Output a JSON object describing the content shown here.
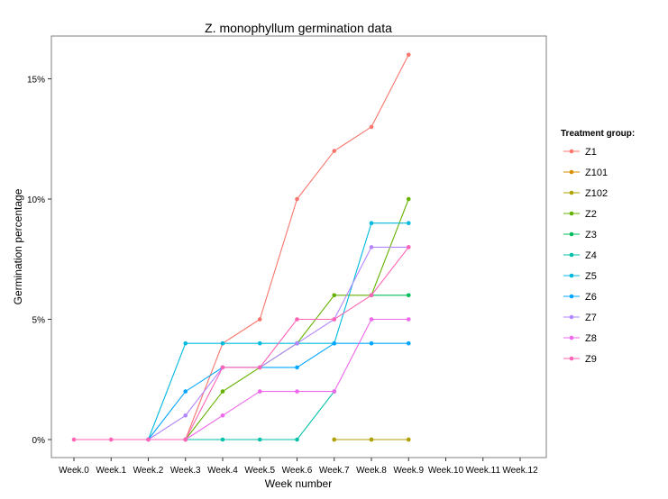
{
  "chart_data": {
    "type": "line",
    "title": "Z. monophyllum germination data",
    "xlabel": "Week number",
    "ylabel": "Germination percentage",
    "categories": [
      "Week.0",
      "Week.1",
      "Week.2",
      "Week.3",
      "Week.4",
      "Week.5",
      "Week.6",
      "Week.7",
      "Week.8",
      "Week.9",
      "Week.10",
      "Week.11",
      "Week.12"
    ],
    "yticks": [
      0,
      5,
      10,
      15
    ],
    "ytick_labels": [
      "0%",
      "5%",
      "10%",
      "15%"
    ],
    "ylim": [
      -0.8,
      16.9
    ],
    "grid": false,
    "legend_title": "Treatment group:",
    "legend_position": "right",
    "series": [
      {
        "name": "Z1",
        "color": "#F8766D",
        "values": [
          null,
          null,
          null,
          0,
          4,
          5,
          10,
          12,
          13,
          16,
          null,
          null,
          null
        ]
      },
      {
        "name": "Z101",
        "color": "#DB8E00",
        "values": [
          null,
          null,
          null,
          null,
          null,
          null,
          null,
          0,
          0,
          0,
          null,
          null,
          null
        ]
      },
      {
        "name": "Z102",
        "color": "#AEA200",
        "values": [
          null,
          null,
          null,
          null,
          null,
          null,
          null,
          0,
          0,
          0,
          null,
          null,
          null
        ]
      },
      {
        "name": "Z2",
        "color": "#64B200",
        "values": [
          null,
          null,
          null,
          0,
          2,
          3,
          4,
          6,
          6,
          10,
          null,
          null,
          null
        ]
      },
      {
        "name": "Z3",
        "color": "#00BD5C",
        "values": [
          null,
          null,
          null,
          null,
          null,
          null,
          null,
          null,
          6,
          6,
          null,
          null,
          null
        ]
      },
      {
        "name": "Z4",
        "color": "#00C1A7",
        "values": [
          null,
          null,
          null,
          0,
          0,
          0,
          0,
          2,
          null,
          null,
          null,
          null,
          null
        ]
      },
      {
        "name": "Z5",
        "color": "#00BADE",
        "values": [
          null,
          null,
          0,
          4,
          4,
          4,
          4,
          4,
          9,
          9,
          null,
          null,
          null
        ]
      },
      {
        "name": "Z6",
        "color": "#00A6FF",
        "values": [
          null,
          null,
          0,
          2,
          3,
          3,
          3,
          4,
          4,
          4,
          null,
          null,
          null
        ]
      },
      {
        "name": "Z7",
        "color": "#B385FF",
        "values": [
          null,
          null,
          0,
          1,
          3,
          3,
          4,
          5,
          8,
          8,
          null,
          null,
          null
        ]
      },
      {
        "name": "Z8",
        "color": "#EF67EB",
        "values": [
          null,
          null,
          null,
          0,
          1,
          2,
          2,
          2,
          5,
          5,
          null,
          null,
          null
        ]
      },
      {
        "name": "Z9",
        "color": "#FF63B6",
        "values": [
          0,
          0,
          0,
          0,
          3,
          3,
          5,
          5,
          6,
          8,
          null,
          null,
          null
        ]
      }
    ]
  }
}
